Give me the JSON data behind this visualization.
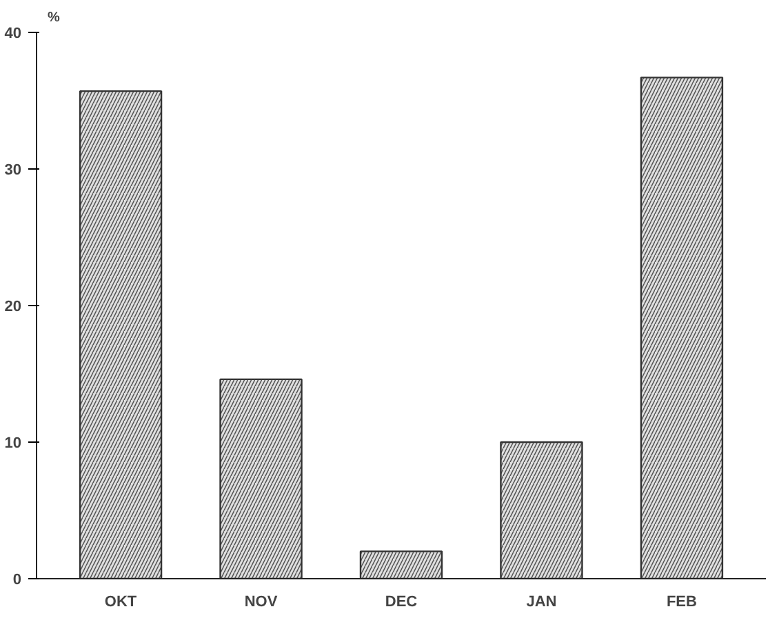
{
  "chart_data": {
    "type": "bar",
    "ylabel": "%",
    "categories": [
      "OKT",
      "NOV",
      "DEC",
      "JAN",
      "FEB"
    ],
    "values": [
      35.7,
      14.6,
      2.0,
      10.0,
      36.7
    ],
    "color": "#e0e0e0",
    "ylim": [
      0,
      40
    ],
    "yticks": [
      0,
      10,
      20,
      30,
      40
    ],
    "grid": false
  }
}
